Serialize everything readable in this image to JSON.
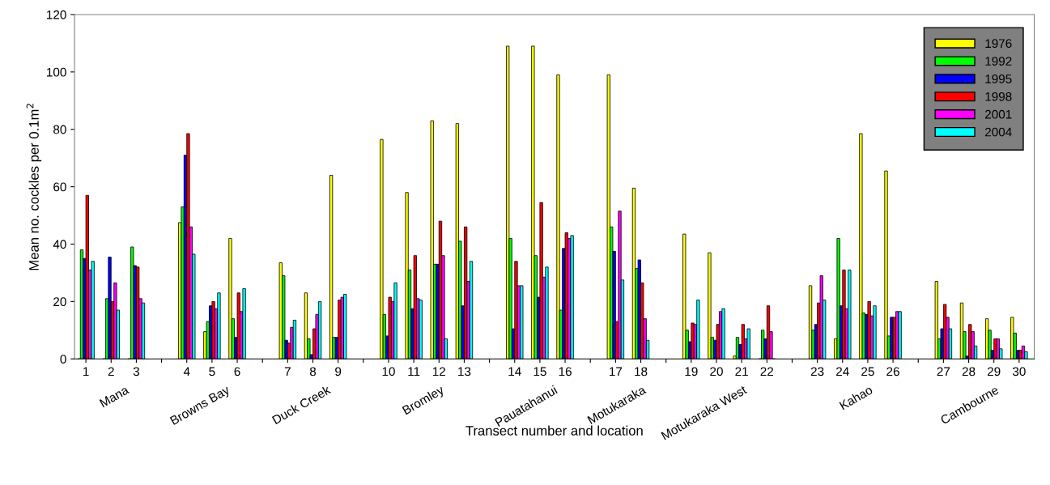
{
  "chart_data": {
    "type": "bar",
    "xlabel": "Transect number and location",
    "ylabel": "Mean no. cockles per 0.1m$^{2}$",
    "categories": [
      "1",
      "2",
      "3",
      null,
      "4",
      "5",
      "6",
      null,
      "7",
      "8",
      "9",
      null,
      "10",
      "11",
      "12",
      "13",
      null,
      "14",
      "15",
      "16",
      null,
      "17",
      "18",
      null,
      "19",
      "20",
      "21",
      "22",
      null,
      "23",
      "24",
      "25",
      "26",
      null,
      "27",
      "28",
      "29",
      "30"
    ],
    "series": [
      {
        "name": "1976",
        "color": "#ffff00",
        "values": [
          0,
          0,
          0,
          null,
          47.5,
          9.5,
          42,
          null,
          33.5,
          23,
          64,
          null,
          76.5,
          58,
          83,
          82,
          null,
          109,
          109,
          99,
          null,
          99,
          59.5,
          null,
          43.5,
          37,
          1,
          0,
          null,
          25.5,
          7,
          78.5,
          65.5,
          null,
          27,
          19.5,
          14,
          14.5
        ]
      },
      {
        "name": "1992",
        "color": "#00ff00",
        "values": [
          38,
          21,
          39,
          null,
          53,
          13,
          14,
          null,
          29,
          7,
          7.5,
          null,
          15.5,
          31,
          33,
          41,
          null,
          42,
          36,
          17,
          null,
          46,
          31.5,
          null,
          10,
          7.5,
          7.5,
          10,
          null,
          10,
          42,
          16,
          8,
          null,
          7,
          9.5,
          10,
          9
        ]
      },
      {
        "name": "1995",
        "color": "#0000ff",
        "values": [
          35,
          35.5,
          32.5,
          null,
          71,
          18.5,
          7.5,
          null,
          6.5,
          1.5,
          7.5,
          null,
          8,
          17.5,
          33,
          18.5,
          null,
          10.5,
          21.5,
          38.5,
          null,
          37.5,
          34.5,
          null,
          6,
          6.5,
          5,
          7,
          null,
          12,
          18.5,
          15.5,
          14.5,
          null,
          10.5,
          1,
          3,
          3
        ]
      },
      {
        "name": "1998",
        "color": "#ff0000",
        "values": [
          57,
          20,
          32,
          null,
          78.5,
          20,
          23,
          null,
          5.5,
          10.5,
          20.5,
          null,
          21.5,
          36,
          48,
          46,
          null,
          34,
          54.5,
          44,
          null,
          13,
          26.5,
          null,
          12.5,
          12,
          12,
          18.5,
          null,
          19.5,
          31,
          20,
          14.5,
          null,
          19,
          12,
          7,
          3
        ]
      },
      {
        "name": "2001",
        "color": "#ff00ff",
        "values": [
          31,
          26.5,
          21,
          null,
          46,
          17.5,
          16.5,
          null,
          11,
          15.5,
          21.5,
          null,
          20,
          21,
          36,
          27,
          null,
          25.5,
          28.5,
          42,
          null,
          51.5,
          14,
          null,
          12,
          16.5,
          7,
          9.5,
          null,
          29,
          17.5,
          15,
          16.5,
          null,
          14.5,
          9.5,
          7,
          4.5
        ]
      },
      {
        "name": "2004",
        "color": "#00ffff",
        "values": [
          34,
          17,
          19.5,
          null,
          36.5,
          23,
          24.5,
          null,
          13.5,
          20,
          22.5,
          null,
          26.5,
          20.5,
          7,
          34,
          null,
          25.5,
          32,
          43,
          null,
          27.5,
          6.5,
          null,
          20.5,
          17.5,
          10.5,
          0,
          null,
          20.5,
          31,
          18.5,
          16.5,
          null,
          10.5,
          4.5,
          3.5,
          2.5
        ]
      }
    ],
    "ylim": [
      0,
      120
    ],
    "yticks": [
      0,
      20,
      40,
      60,
      80,
      100,
      120
    ],
    "grid": false,
    "legend": "top right",
    "annotations": [
      "Mana",
      "Browns Bay",
      "Duck Creek",
      "Bromley",
      "Pauatahanui",
      "Motukaraka",
      "Motukaraka West",
      "Kahao",
      "Cambourne"
    ]
  }
}
